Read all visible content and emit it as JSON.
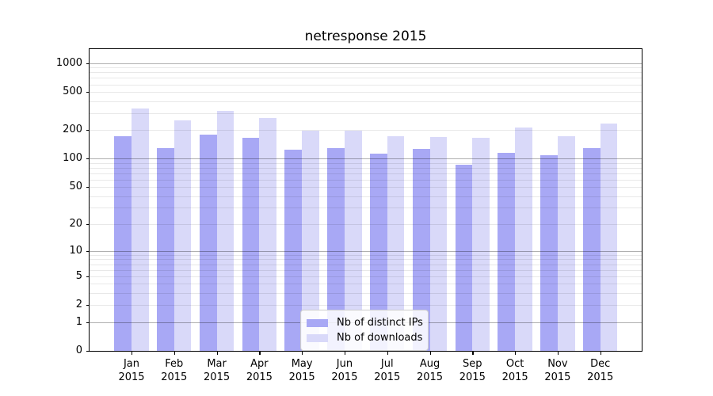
{
  "chart_data": {
    "type": "bar",
    "title": "netresponse 2015",
    "categories": [
      "Jan",
      "Feb",
      "Mar",
      "Apr",
      "May",
      "Jun",
      "Jul",
      "Aug",
      "Sep",
      "Oct",
      "Nov",
      "Dec"
    ],
    "category_year": "2015",
    "series": [
      {
        "name": "Nb of distinct IPs",
        "color": "#a8a8f5",
        "values": [
          172,
          128,
          178,
          166,
          125,
          129,
          112,
          127,
          86,
          116,
          108,
          128
        ]
      },
      {
        "name": "Nb of downloads",
        "color": "#d9d9f9",
        "values": [
          335,
          254,
          315,
          269,
          197,
          197,
          172,
          168,
          165,
          212,
          172,
          234
        ]
      }
    ],
    "y_ticks": [
      0,
      1,
      2,
      5,
      10,
      20,
      50,
      100,
      200,
      500,
      1000
    ],
    "y_scale": "log1p",
    "ylim": [
      0,
      1400
    ],
    "xlabel": "",
    "ylabel": "",
    "grid": true,
    "legend_position": "lower-center"
  },
  "colors": {
    "background": "#ffffff",
    "axis": "#000000",
    "text": "#000000",
    "major_grid": "#b0b0b0",
    "minor_grid": "#e9e9e9",
    "legend_border": "#cccccc"
  }
}
